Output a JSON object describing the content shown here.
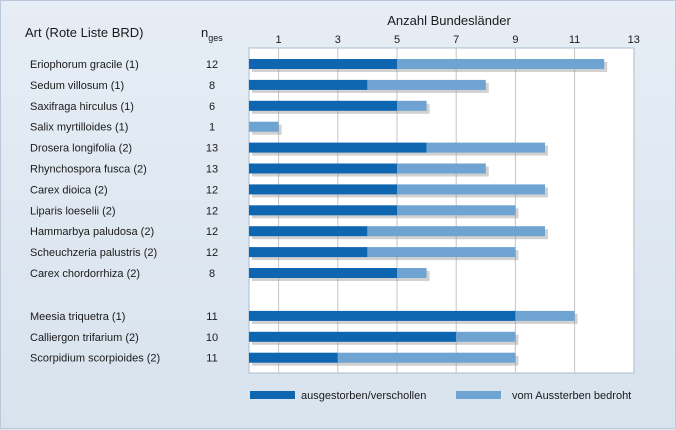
{
  "chart_data": {
    "type": "bar",
    "orientation": "horizontal",
    "stacked": true,
    "header_species": "Art (Rote Liste BRD)",
    "header_n": "n",
    "header_n_sub": "ges",
    "xlabel": "Anzahl Bundesländer",
    "xlim": [
      0,
      13
    ],
    "xticks": [
      1,
      3,
      5,
      7,
      9,
      11,
      13
    ],
    "grid": true,
    "legend_position": "bottom",
    "groups": [
      11,
      3
    ],
    "categories": [
      "Eriophorum gracile (1)",
      "Sedum villosum (1)",
      "Saxifraga hirculus (1)",
      "Salix myrtilloides (1)",
      "Drosera longifolia (2)",
      "Rhynchospora fusca (2)",
      "Carex dioica (2)",
      "Liparis loeselii (2)",
      "Hammarbya paludosa (2)",
      "Scheuchzeria palustris (2)",
      "Carex chordorrhiza (2)",
      "Meesia triquetra (1)",
      "Calliergon trifarium (2)",
      "Scorpidium scorpioides (2)"
    ],
    "n_ges": [
      "12",
      "8",
      "6",
      "1",
      "13",
      "13",
      "12",
      "12",
      "12",
      "12",
      "8",
      "11",
      "10",
      "11"
    ],
    "series": [
      {
        "name": "ausgestorben/verschollen",
        "color": "#0e66b0",
        "values": [
          5,
          4,
          5,
          0,
          6,
          5,
          5,
          5,
          4,
          4,
          5,
          9,
          7,
          3
        ]
      },
      {
        "name": "vom Aussterben bedroht",
        "color": "#6fa3d1",
        "values": [
          7,
          4,
          1,
          1,
          4,
          3,
          5,
          4,
          6,
          5,
          1,
          2,
          2,
          6
        ]
      }
    ]
  }
}
